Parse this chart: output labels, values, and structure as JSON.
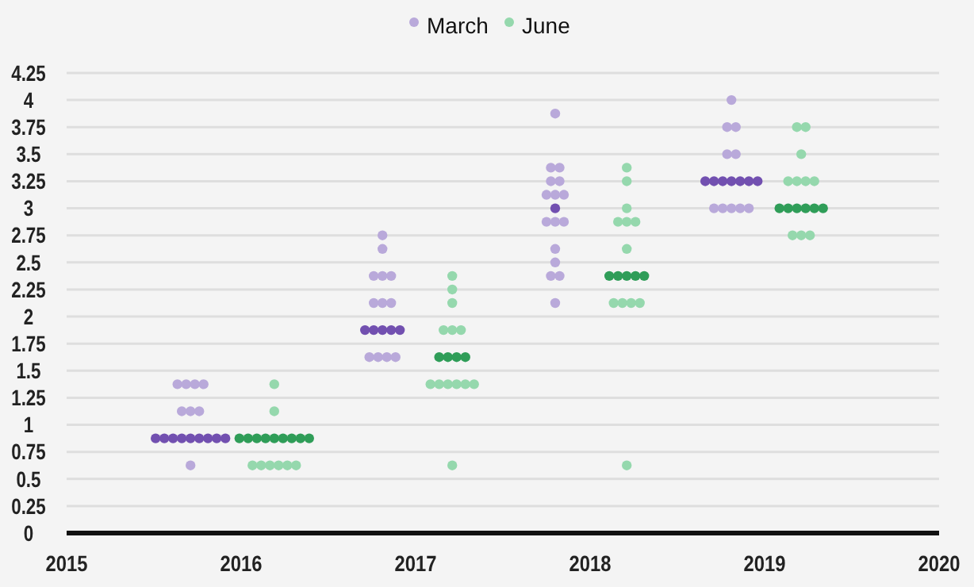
{
  "chart_data": {
    "type": "scatter",
    "legend": "top",
    "grid": "y",
    "marker": "circle",
    "xlim": [
      2015,
      2020
    ],
    "xticks": [
      2015,
      2016,
      2017,
      2018,
      2019,
      2020
    ],
    "ylim": [
      0,
      4.25
    ],
    "yticks": [
      0,
      0.25,
      0.5,
      0.75,
      1,
      1.25,
      1.5,
      1.75,
      2,
      2.25,
      2.5,
      2.75,
      3,
      3.25,
      3.5,
      3.75,
      4,
      4.25
    ],
    "series": [
      {
        "name": "March",
        "color": "#b9a9da",
        "x": [
          2015.635,
          2015.685,
          2015.735,
          2015.785,
          2015.66,
          2015.71,
          2015.76,
          2015.71,
          2016.81,
          2016.81,
          2016.76,
          2016.81,
          2016.86,
          2016.76,
          2016.81,
          2016.86,
          2016.735,
          2016.785,
          2016.835,
          2016.885,
          2017.8,
          2017.775,
          2017.825,
          2017.775,
          2017.825,
          2017.75,
          2017.8,
          2017.85,
          2017.75,
          2017.8,
          2017.85,
          2017.8,
          2017.8,
          2017.775,
          2017.825,
          2017.8,
          2018.81,
          2018.785,
          2018.835,
          2018.785,
          2018.835,
          2018.71,
          2018.76,
          2018.81,
          2018.86,
          2018.91
        ],
        "values": [
          1.375,
          1.375,
          1.375,
          1.375,
          1.125,
          1.125,
          1.125,
          0.625,
          2.75,
          2.625,
          2.375,
          2.375,
          2.375,
          2.125,
          2.125,
          2.125,
          1.625,
          1.625,
          1.625,
          1.625,
          3.875,
          3.375,
          3.375,
          3.25,
          3.25,
          3.125,
          3.125,
          3.125,
          2.875,
          2.875,
          2.875,
          2.625,
          2.5,
          2.375,
          2.375,
          2.125,
          4,
          3.75,
          3.75,
          3.5,
          3.5,
          3,
          3,
          3,
          3,
          3
        ]
      },
      {
        "color": "#7250b0",
        "x": [
          2015.51,
          2015.56,
          2015.61,
          2015.66,
          2015.71,
          2015.76,
          2015.81,
          2015.86,
          2015.91,
          2016.71,
          2016.76,
          2016.81,
          2016.86,
          2016.91,
          2017.8,
          2018.66,
          2018.71,
          2018.76,
          2018.81,
          2018.86,
          2018.91,
          2018.96
        ],
        "values": [
          0.875,
          0.875,
          0.875,
          0.875,
          0.875,
          0.875,
          0.875,
          0.875,
          0.875,
          1.875,
          1.875,
          1.875,
          1.875,
          1.875,
          3,
          3.25,
          3.25,
          3.25,
          3.25,
          3.25,
          3.25,
          3.25
        ]
      },
      {
        "name": "June",
        "color": "#95d8ad",
        "x": [
          2016.19,
          2016.19,
          2016.065,
          2016.115,
          2016.165,
          2016.215,
          2016.265,
          2016.315,
          2017.21,
          2017.21,
          2017.21,
          2017.16,
          2017.21,
          2017.26,
          2017.085,
          2017.135,
          2017.185,
          2017.235,
          2017.285,
          2017.335,
          2017.21,
          2018.21,
          2018.21,
          2018.21,
          2018.16,
          2018.21,
          2018.26,
          2018.21,
          2018.135,
          2018.185,
          2018.235,
          2018.285,
          2018.21,
          2019.185,
          2019.235,
          2019.21,
          2019.135,
          2019.185,
          2019.235,
          2019.285,
          2019.16,
          2019.21,
          2019.26
        ],
        "values": [
          1.375,
          1.125,
          0.625,
          0.625,
          0.625,
          0.625,
          0.625,
          0.625,
          2.375,
          2.25,
          2.125,
          1.875,
          1.875,
          1.875,
          1.375,
          1.375,
          1.375,
          1.375,
          1.375,
          1.375,
          0.625,
          3.375,
          3.25,
          3,
          2.875,
          2.875,
          2.875,
          2.625,
          2.125,
          2.125,
          2.125,
          2.125,
          0.625,
          3.75,
          3.75,
          3.5,
          3.25,
          3.25,
          3.25,
          3.25,
          2.75,
          2.75,
          2.75
        ]
      },
      {
        "color": "#2f9d58",
        "x": [
          2015.99,
          2016.04,
          2016.09,
          2016.14,
          2016.19,
          2016.24,
          2016.29,
          2016.34,
          2016.39,
          2017.135,
          2017.185,
          2017.235,
          2017.285,
          2018.11,
          2018.16,
          2018.21,
          2018.26,
          2018.31,
          2019.085,
          2019.135,
          2019.185,
          2019.235,
          2019.285,
          2019.335
        ],
        "values": [
          0.875,
          0.875,
          0.875,
          0.875,
          0.875,
          0.875,
          0.875,
          0.875,
          0.875,
          1.625,
          1.625,
          1.625,
          1.625,
          2.375,
          2.375,
          2.375,
          2.375,
          2.375,
          3,
          3,
          3,
          3,
          3,
          3
        ]
      }
    ]
  }
}
